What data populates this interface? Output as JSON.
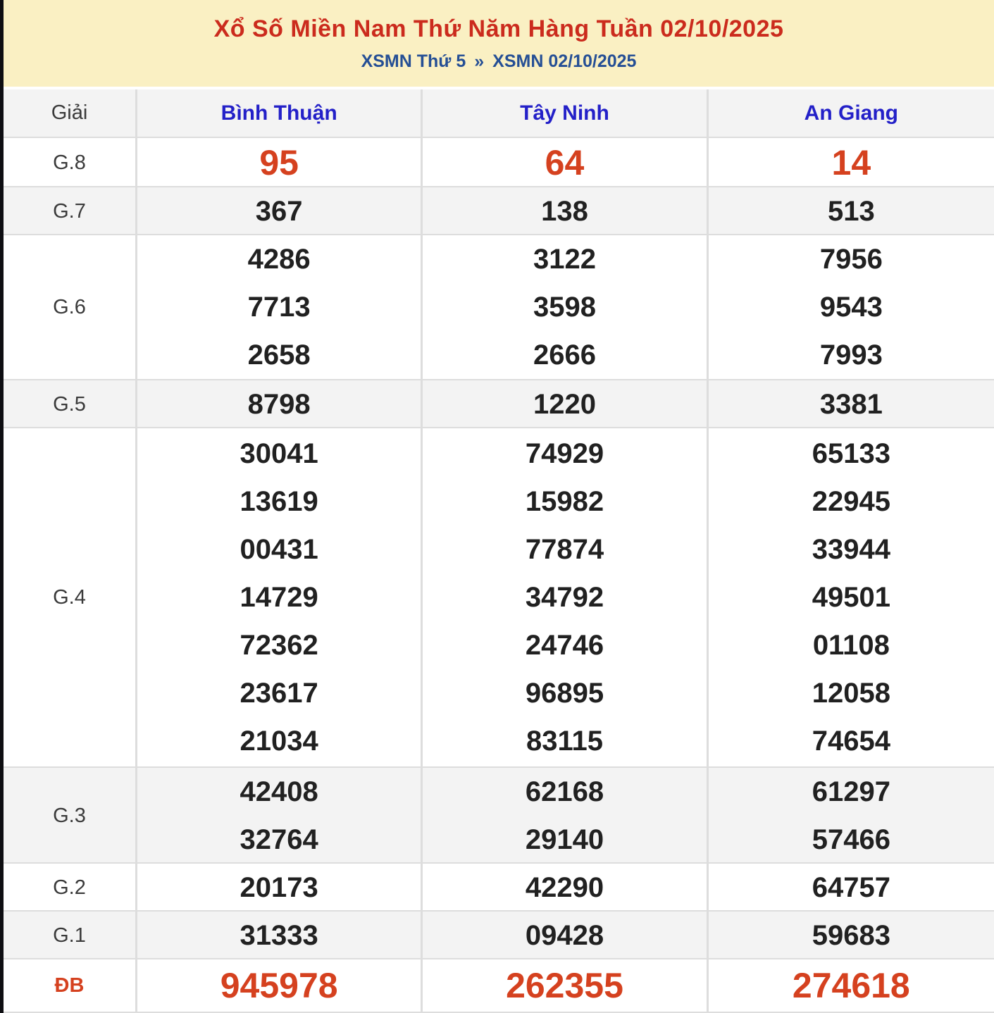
{
  "header": {
    "title": "Xổ Số Miền Nam Thứ Năm Hàng Tuần 02/10/2025",
    "breadcrumb": {
      "left": "XSMN Thứ 5",
      "separator": "»",
      "right": "XSMN 02/10/2025"
    }
  },
  "table": {
    "corner_label": "Giải",
    "provinces": [
      "Bình Thuận",
      "Tây Ninh",
      "An Giang"
    ],
    "rows": [
      {
        "key": "g8",
        "label": "G.8",
        "highlight": true,
        "values": [
          [
            "95"
          ],
          [
            "64"
          ],
          [
            "14"
          ]
        ]
      },
      {
        "key": "g7",
        "label": "G.7",
        "values": [
          [
            "367"
          ],
          [
            "138"
          ],
          [
            "513"
          ]
        ]
      },
      {
        "key": "g6",
        "label": "G.6",
        "values": [
          [
            "4286",
            "7713",
            "2658"
          ],
          [
            "3122",
            "3598",
            "2666"
          ],
          [
            "7956",
            "9543",
            "7993"
          ]
        ]
      },
      {
        "key": "g5",
        "label": "G.5",
        "values": [
          [
            "8798"
          ],
          [
            "1220"
          ],
          [
            "3381"
          ]
        ]
      },
      {
        "key": "g4",
        "label": "G.4",
        "values": [
          [
            "30041",
            "13619",
            "00431",
            "14729",
            "72362",
            "23617",
            "21034"
          ],
          [
            "74929",
            "15982",
            "77874",
            "34792",
            "24746",
            "96895",
            "83115"
          ],
          [
            "65133",
            "22945",
            "33944",
            "49501",
            "01108",
            "12058",
            "74654"
          ]
        ]
      },
      {
        "key": "g3",
        "label": "G.3",
        "values": [
          [
            "42408",
            "32764"
          ],
          [
            "62168",
            "29140"
          ],
          [
            "61297",
            "57466"
          ]
        ]
      },
      {
        "key": "g2",
        "label": "G.2",
        "values": [
          [
            "20173"
          ],
          [
            "42290"
          ],
          [
            "64757"
          ]
        ]
      },
      {
        "key": "g1",
        "label": "G.1",
        "values": [
          [
            "31333"
          ],
          [
            "09428"
          ],
          [
            "59683"
          ]
        ]
      },
      {
        "key": "db",
        "label": "ĐB",
        "highlight": true,
        "values": [
          [
            "945978"
          ],
          [
            "262355"
          ],
          [
            "274618"
          ]
        ]
      }
    ]
  },
  "colors": {
    "banner_yellow": "#faf0c3",
    "title_red": "#cb2b1d",
    "number_red": "#d5411f",
    "header_blue": "#2320c8",
    "link_navy": "#254f95",
    "row_gray": "#f3f3f3",
    "border_gray": "#dddddd"
  }
}
